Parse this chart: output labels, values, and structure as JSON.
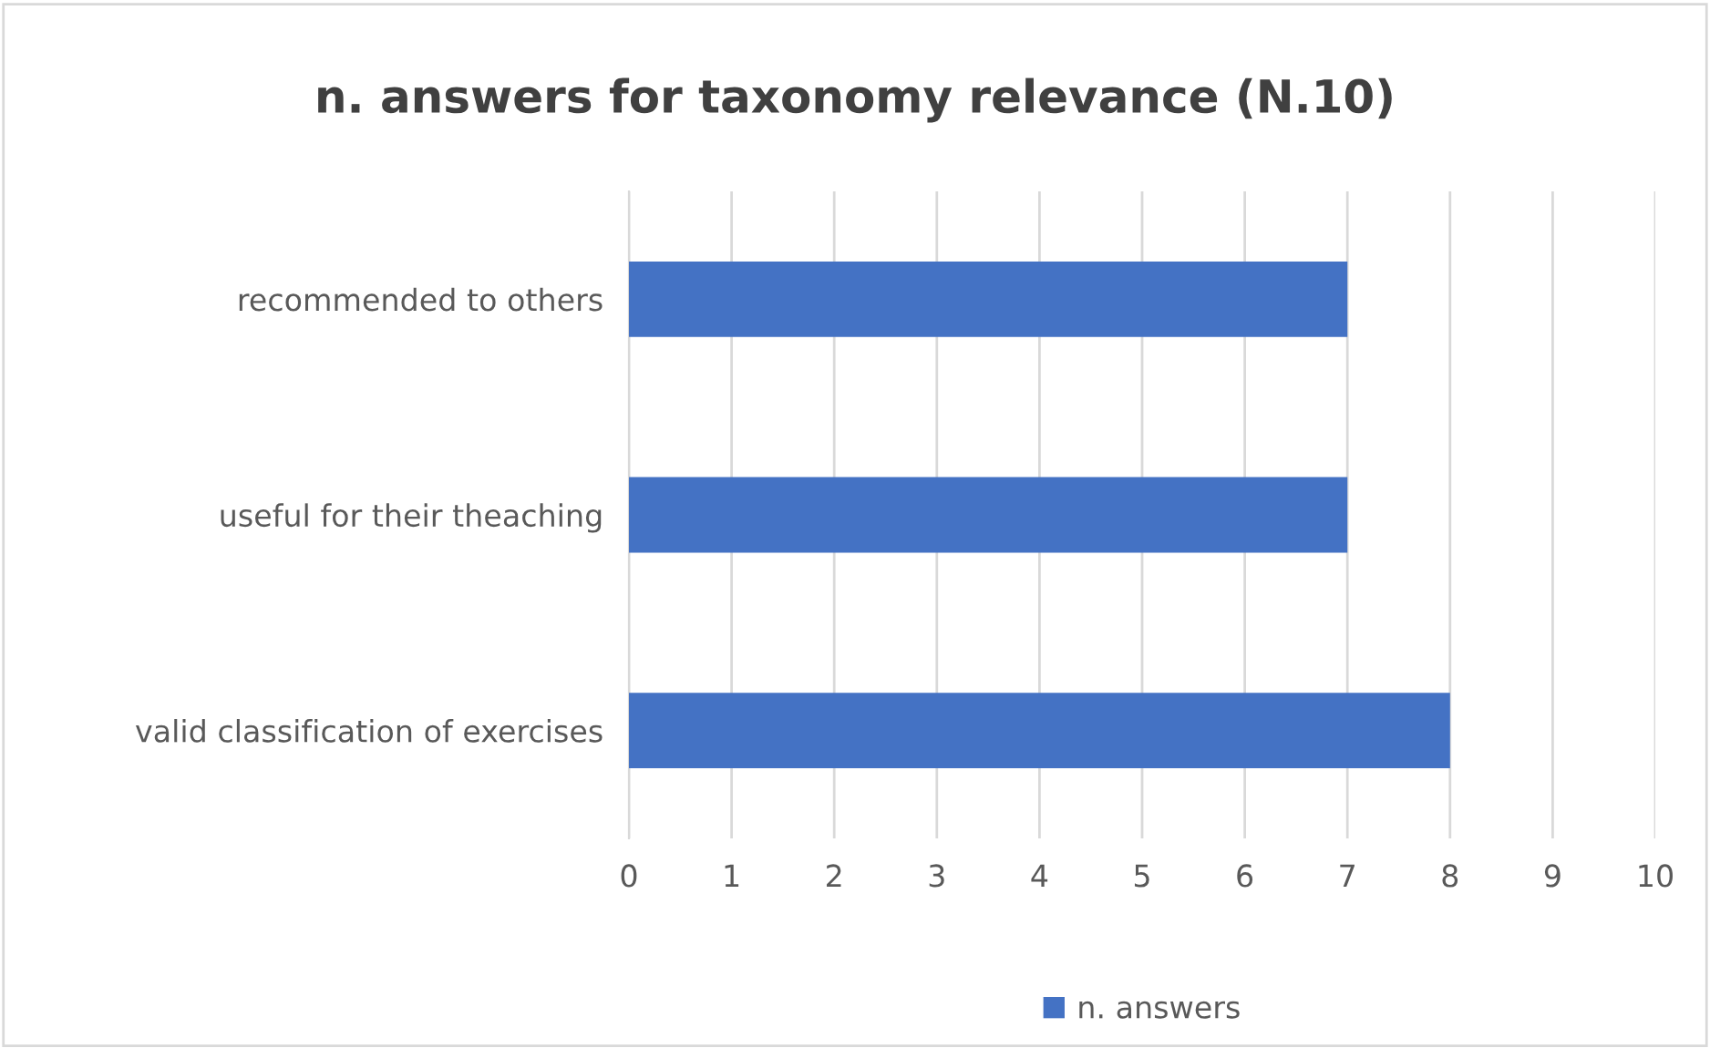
{
  "chart_data": {
    "type": "bar",
    "orientation": "horizontal",
    "title": "n. answers for taxonomy relevance (N.10)",
    "categories": [
      "recommended to others",
      "useful for their theaching",
      "valid classification of exercises"
    ],
    "series": [
      {
        "name": "n. answers",
        "color": "#4472c4",
        "values": [
          7,
          7,
          8
        ]
      }
    ],
    "xlim": [
      0,
      10
    ],
    "xticks": [
      0,
      1,
      2,
      3,
      4,
      5,
      6,
      7,
      8,
      9,
      10
    ],
    "grid": "x",
    "legend": "bottom"
  }
}
